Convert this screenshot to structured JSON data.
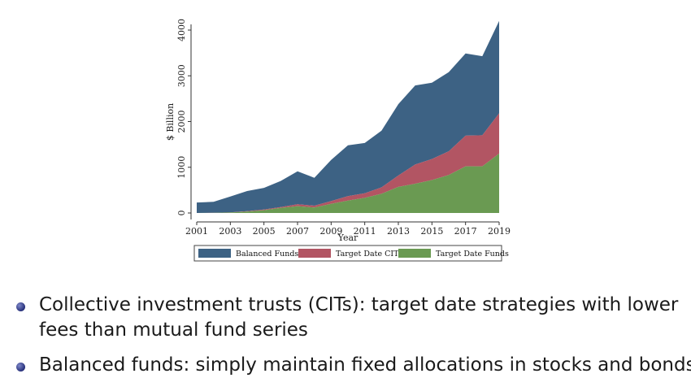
{
  "chart_data": {
    "type": "area",
    "stacked": true,
    "xlabel": "Year",
    "ylabel": "$ Billion",
    "xlim": [
      2001,
      2019
    ],
    "ylim": [
      0,
      4200
    ],
    "x_ticks": [
      "2001",
      "2003",
      "2005",
      "2007",
      "2009",
      "2011",
      "2013",
      "2015",
      "2017",
      "2019"
    ],
    "y_ticks": [
      "0",
      "1000",
      "2000",
      "3000",
      "4000"
    ],
    "x": [
      2001,
      2002,
      2003,
      2004,
      2005,
      2006,
      2007,
      2008,
      2009,
      2010,
      2011,
      2012,
      2013,
      2014,
      2015,
      2016,
      2017,
      2018,
      2019
    ],
    "series": [
      {
        "name": "Target Date Funds",
        "color": "#6a9a52",
        "values": [
          0,
          2,
          10,
          30,
          60,
          110,
          150,
          120,
          200,
          270,
          330,
          420,
          570,
          640,
          720,
          830,
          1020,
          1020,
          1300
        ]
      },
      {
        "name": "Target Date CITs",
        "color": "#b25563",
        "values": [
          0,
          1,
          5,
          10,
          15,
          20,
          40,
          40,
          60,
          100,
          100,
          140,
          250,
          420,
          460,
          520,
          670,
          680,
          880
        ]
      },
      {
        "name": "Balanced Funds",
        "color": "#3d6284",
        "values": [
          230,
          240,
          345,
          440,
          475,
          570,
          720,
          610,
          900,
          1110,
          1100,
          1240,
          1560,
          1730,
          1670,
          1730,
          1800,
          1730,
          2020
        ]
      }
    ],
    "legend": {
      "position": "bottom",
      "order": [
        "Balanced Funds",
        "Target Date CITs",
        "Target Date Funds"
      ]
    },
    "grid": false
  },
  "bullets": [
    "Collective investment trusts (CITs): target date strategies with lower fees than mutual fund series",
    "Balanced funds: simply maintain fixed allocations in stocks and bonds"
  ]
}
